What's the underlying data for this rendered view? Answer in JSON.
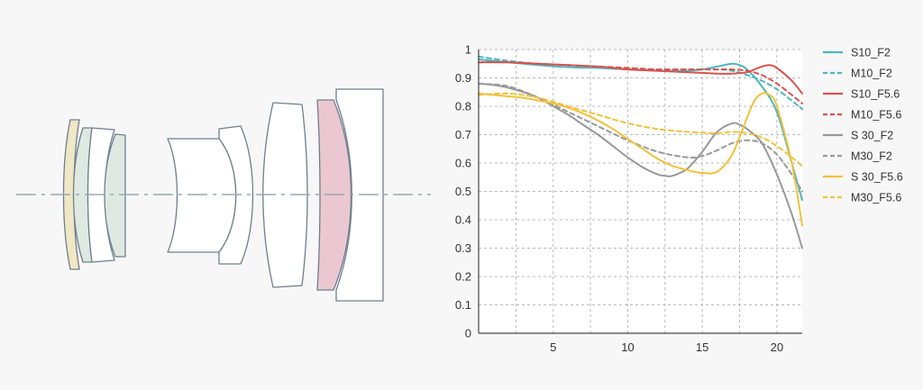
{
  "colors": {
    "background": "#f7f7f7",
    "grid": "#b9b9b9",
    "axis": "#444444",
    "lens_outline": "#6f7f8c",
    "optical_axis": "#9aa9ae",
    "lens_yellow": "#efe7c5",
    "lens_green": "#dfe9e2",
    "lens_white": "#ffffff",
    "lens_pink": "#ebc8d1",
    "s10": "#4db6be",
    "sf10": "#d9534f",
    "s30": "#999999",
    "sf30": "#f2c13d"
  },
  "chart_data": {
    "type": "line",
    "xlim": [
      0,
      21.7
    ],
    "ylim": [
      0,
      1
    ],
    "x_ticks": [
      "5",
      "10",
      "15",
      "20"
    ],
    "y_ticks": [
      "0",
      "0.1",
      "0.2",
      "0.3",
      "0.4",
      "0.5",
      "0.6",
      "0.7",
      "0.8",
      "0.9",
      "1"
    ],
    "x_grid": [
      0,
      2.5,
      5,
      7.5,
      10,
      12.5,
      15,
      17.5,
      20
    ],
    "grid": "dashed",
    "legend_position": "right",
    "series": [
      {
        "name": "S10_F2",
        "color": "#4db6be",
        "dash": false,
        "x": [
          0,
          2,
          4,
          6,
          8,
          10,
          12,
          14,
          15,
          16,
          17,
          17.5,
          18,
          19,
          20,
          21,
          21.7
        ],
        "y": [
          0.965,
          0.955,
          0.945,
          0.938,
          0.935,
          0.93,
          0.925,
          0.925,
          0.93,
          0.94,
          0.95,
          0.945,
          0.93,
          0.87,
          0.78,
          0.6,
          0.47
        ]
      },
      {
        "name": "M10_F2",
        "color": "#4db6be",
        "dash": true,
        "x": [
          0,
          2,
          4,
          6,
          8,
          10,
          12,
          14,
          16,
          17,
          18,
          19,
          20,
          21,
          21.7
        ],
        "y": [
          0.975,
          0.96,
          0.95,
          0.945,
          0.94,
          0.935,
          0.93,
          0.93,
          0.93,
          0.925,
          0.91,
          0.89,
          0.86,
          0.82,
          0.79
        ]
      },
      {
        "name": "S10_F5.6",
        "color": "#d9534f",
        "dash": false,
        "x": [
          0,
          2,
          4,
          6,
          8,
          10,
          12,
          14,
          16,
          17,
          18,
          18.5,
          19,
          19.5,
          20,
          21,
          21.7
        ],
        "y": [
          0.955,
          0.955,
          0.95,
          0.945,
          0.94,
          0.93,
          0.925,
          0.92,
          0.915,
          0.915,
          0.92,
          0.93,
          0.94,
          0.945,
          0.935,
          0.89,
          0.845
        ]
      },
      {
        "name": "M10_F5.6",
        "color": "#d9534f",
        "dash": true,
        "x": [
          0,
          2,
          4,
          6,
          8,
          10,
          12,
          14,
          16,
          17,
          18,
          19,
          20,
          21,
          21.7
        ],
        "y": [
          0.955,
          0.955,
          0.95,
          0.945,
          0.94,
          0.935,
          0.93,
          0.93,
          0.93,
          0.93,
          0.925,
          0.91,
          0.88,
          0.84,
          0.81
        ]
      },
      {
        "name": "S 30_F2",
        "color": "#999999",
        "dash": false,
        "x": [
          0,
          1,
          2,
          3,
          4,
          5,
          6,
          7,
          8,
          9,
          10,
          11,
          12,
          12.5,
          13,
          14,
          15,
          16,
          17,
          17.5,
          18,
          19,
          20,
          21,
          21.7
        ],
        "y": [
          0.88,
          0.875,
          0.865,
          0.85,
          0.83,
          0.8,
          0.77,
          0.735,
          0.7,
          0.66,
          0.62,
          0.585,
          0.56,
          0.555,
          0.555,
          0.58,
          0.64,
          0.71,
          0.74,
          0.735,
          0.72,
          0.67,
          0.56,
          0.42,
          0.3
        ]
      },
      {
        "name": "M30_F2",
        "color": "#999999",
        "dash": true,
        "x": [
          0,
          2,
          4,
          6,
          8,
          10,
          12,
          14,
          15,
          16,
          17,
          18,
          19,
          20,
          21,
          21.7
        ],
        "y": [
          0.88,
          0.87,
          0.83,
          0.78,
          0.73,
          0.68,
          0.64,
          0.62,
          0.625,
          0.645,
          0.67,
          0.68,
          0.67,
          0.63,
          0.56,
          0.5
        ]
      },
      {
        "name": "S 30_F5.6",
        "color": "#f2c13d",
        "dash": false,
        "x": [
          0,
          1,
          2,
          3,
          4,
          5,
          6,
          7,
          8,
          9,
          10,
          11,
          12,
          13,
          14,
          15,
          16,
          17,
          18,
          18.5,
          19,
          19.5,
          20,
          21,
          21.7
        ],
        "y": [
          0.845,
          0.84,
          0.835,
          0.83,
          0.82,
          0.81,
          0.795,
          0.775,
          0.75,
          0.72,
          0.685,
          0.65,
          0.615,
          0.59,
          0.575,
          0.565,
          0.57,
          0.63,
          0.76,
          0.82,
          0.845,
          0.84,
          0.8,
          0.6,
          0.38
        ]
      },
      {
        "name": "M30_F5.6",
        "color": "#f2c13d",
        "dash": true,
        "x": [
          0,
          2,
          4,
          6,
          8,
          10,
          12,
          14,
          16,
          17,
          18,
          19,
          20,
          21,
          21.7
        ],
        "y": [
          0.84,
          0.845,
          0.83,
          0.8,
          0.77,
          0.74,
          0.72,
          0.71,
          0.705,
          0.71,
          0.705,
          0.69,
          0.66,
          0.62,
          0.59
        ]
      }
    ]
  }
}
